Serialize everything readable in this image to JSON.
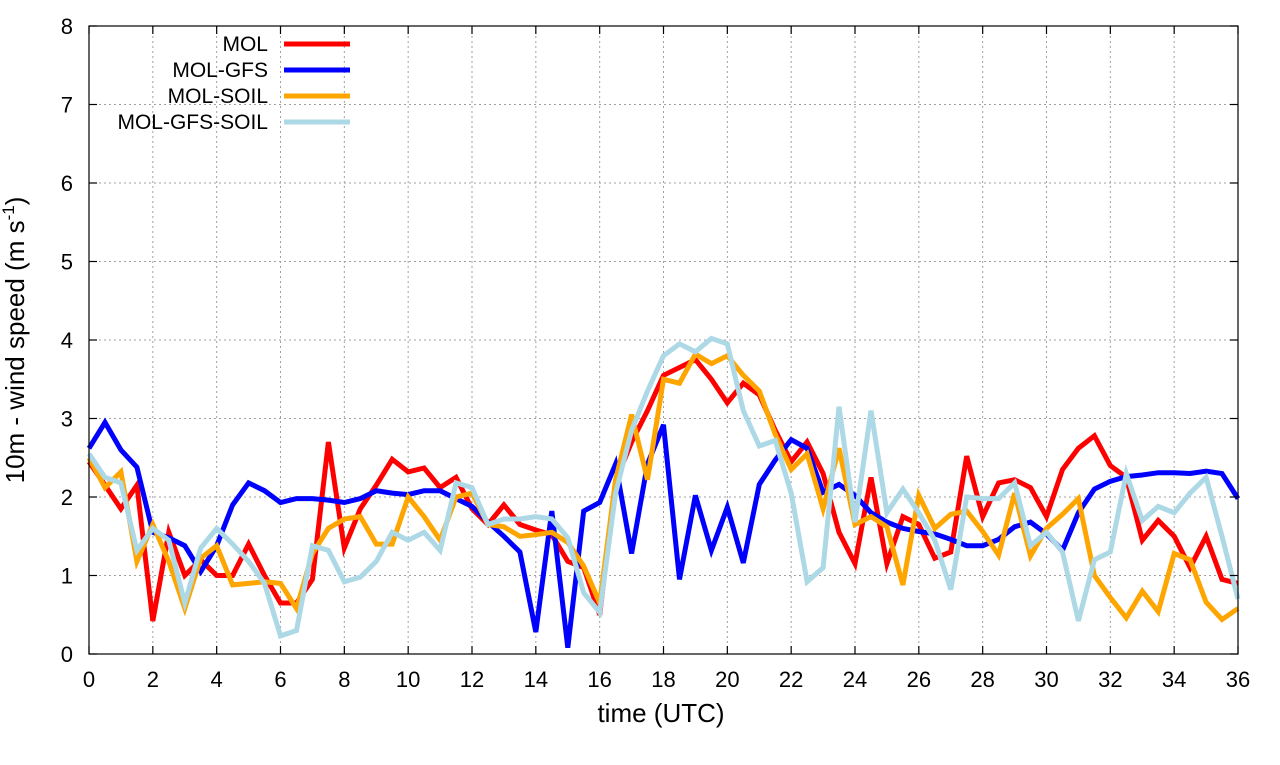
{
  "chart_data": {
    "type": "line",
    "xlabel": "time (UTC)",
    "ylabel": {
      "main": "10m - wind speed  (m s",
      "sup": "-1",
      "close": ")"
    },
    "xlim": [
      0,
      36
    ],
    "ylim": [
      0,
      8
    ],
    "x_ticks": [
      "0",
      "2",
      "4",
      "6",
      "8",
      "10",
      "12",
      "14",
      "16",
      "18",
      "20",
      "22",
      "24",
      "26",
      "28",
      "30",
      "32",
      "34",
      "36"
    ],
    "y_ticks": [
      "0",
      "1",
      "2",
      "3",
      "4",
      "5",
      "6",
      "7",
      "8"
    ],
    "grid": true,
    "legend_position": "top-left",
    "x": [
      0,
      0.5,
      1,
      1.5,
      2,
      2.5,
      3,
      3.5,
      4,
      4.5,
      5,
      5.5,
      6,
      6.5,
      7,
      7.5,
      8,
      8.5,
      9,
      9.5,
      10,
      10.5,
      11,
      11.5,
      12,
      12.5,
      13,
      13.5,
      14,
      14.5,
      15,
      15.5,
      16,
      16.5,
      17,
      17.5,
      18,
      18.5,
      19,
      19.5,
      20,
      20.5,
      21,
      21.5,
      22,
      22.5,
      23,
      23.5,
      24,
      24.5,
      25,
      25.5,
      26,
      26.5,
      27,
      27.5,
      28,
      28.5,
      29,
      29.5,
      30,
      30.5,
      31,
      31.5,
      32,
      32.5,
      33,
      33.5,
      34,
      34.5,
      35,
      35.5,
      36
    ],
    "series": [
      {
        "name": "MOL",
        "color": "#ff0000",
        "values": [
          2.45,
          2.15,
          1.85,
          2.15,
          0.42,
          1.55,
          1.0,
          1.2,
          1.0,
          1.0,
          1.4,
          1.0,
          0.65,
          0.65,
          0.95,
          2.7,
          1.35,
          1.85,
          2.15,
          2.48,
          2.32,
          2.37,
          2.12,
          2.25,
          1.85,
          1.65,
          1.9,
          1.65,
          1.58,
          1.52,
          1.18,
          1.1,
          0.5,
          2.2,
          2.7,
          3.1,
          3.55,
          3.65,
          3.75,
          3.5,
          3.2,
          3.45,
          3.3,
          2.85,
          2.45,
          2.7,
          2.3,
          1.55,
          1.15,
          2.25,
          1.15,
          1.75,
          1.65,
          1.22,
          1.3,
          2.52,
          1.75,
          2.18,
          2.22,
          2.12,
          1.75,
          2.35,
          2.62,
          2.78,
          2.4,
          2.25,
          1.45,
          1.7,
          1.5,
          1.1,
          1.5,
          0.95,
          0.9
        ]
      },
      {
        "name": "MOL-GFS",
        "color": "#0000ff",
        "values": [
          2.62,
          2.95,
          2.6,
          2.38,
          1.55,
          1.48,
          1.38,
          1.05,
          1.38,
          1.9,
          2.18,
          2.08,
          1.93,
          1.98,
          1.98,
          1.96,
          1.93,
          1.98,
          2.08,
          2.05,
          2.03,
          2.08,
          2.08,
          1.98,
          1.88,
          1.68,
          1.5,
          1.3,
          0.28,
          1.82,
          0.08,
          1.82,
          1.93,
          2.42,
          1.28,
          2.42,
          2.92,
          0.95,
          2.02,
          1.32,
          1.87,
          1.16,
          2.16,
          2.47,
          2.73,
          2.62,
          2.06,
          2.16,
          2.02,
          1.8,
          1.68,
          1.6,
          1.56,
          1.53,
          1.46,
          1.38,
          1.38,
          1.46,
          1.62,
          1.68,
          1.53,
          1.32,
          1.8,
          2.1,
          2.2,
          2.26,
          2.28,
          2.31,
          2.31,
          2.3,
          2.33,
          2.3,
          1.98
        ]
      },
      {
        "name": "MOL-SOIL",
        "color": "#ffa500",
        "values": [
          2.5,
          2.12,
          2.32,
          1.18,
          1.65,
          1.18,
          0.58,
          1.22,
          1.38,
          0.88,
          0.9,
          0.92,
          0.9,
          0.58,
          1.28,
          1.6,
          1.72,
          1.75,
          1.4,
          1.4,
          2.0,
          1.75,
          1.45,
          2.0,
          2.05,
          1.65,
          1.62,
          1.5,
          1.52,
          1.55,
          1.42,
          1.12,
          0.65,
          2.22,
          3.05,
          2.22,
          3.5,
          3.45,
          3.82,
          3.7,
          3.8,
          3.55,
          3.35,
          2.8,
          2.35,
          2.55,
          1.85,
          2.62,
          1.65,
          1.75,
          1.62,
          0.88,
          2.02,
          1.6,
          1.78,
          1.82,
          1.56,
          1.26,
          2.05,
          1.25,
          1.6,
          1.78,
          1.98,
          1.0,
          0.72,
          0.46,
          0.8,
          0.54,
          1.28,
          1.2,
          0.66,
          0.44,
          0.58
        ]
      },
      {
        "name": "MOL-GFS-SOIL",
        "color": "#add8e6",
        "values": [
          2.55,
          2.25,
          2.18,
          1.32,
          1.6,
          1.45,
          0.65,
          1.35,
          1.6,
          1.4,
          1.18,
          0.9,
          0.23,
          0.3,
          1.38,
          1.32,
          0.92,
          0.98,
          1.18,
          1.55,
          1.45,
          1.55,
          1.32,
          2.18,
          2.12,
          1.65,
          1.72,
          1.72,
          1.75,
          1.72,
          1.48,
          0.78,
          0.53,
          2.05,
          2.85,
          3.35,
          3.8,
          3.95,
          3.85,
          4.02,
          3.95,
          3.1,
          2.65,
          2.72,
          2.05,
          0.92,
          1.1,
          3.15,
          1.68,
          3.1,
          1.8,
          2.1,
          1.8,
          1.45,
          0.82,
          2.0,
          1.98,
          1.98,
          2.18,
          1.38,
          1.55,
          1.3,
          0.42,
          1.2,
          1.3,
          2.3,
          1.7,
          1.88,
          1.8,
          2.05,
          2.25,
          1.5,
          0.7
        ]
      }
    ]
  }
}
